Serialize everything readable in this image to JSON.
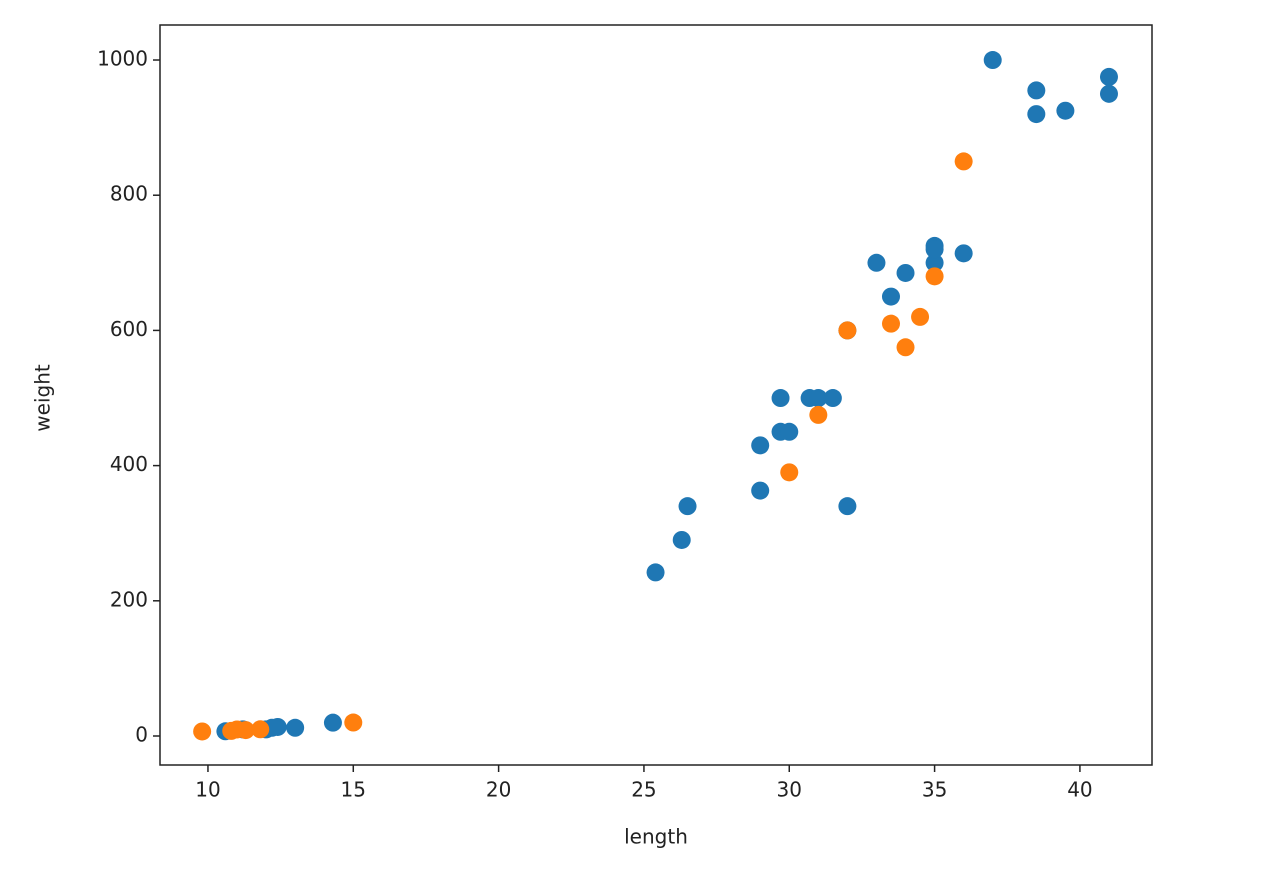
{
  "chart_data": {
    "type": "scatter",
    "x_label": "length",
    "y_label": "weight",
    "xlim": [
      8.35,
      42.48
    ],
    "xticks": [
      10,
      15,
      20,
      25,
      30,
      35,
      40
    ],
    "ylim": [
      -42.9,
      1051.8
    ],
    "yticks": [
      0,
      200,
      400,
      600,
      800,
      1000
    ],
    "grid": false,
    "series": [
      {
        "color": "#1f77b4",
        "x": [
          25.4,
          26.3,
          26.5,
          29,
          29,
          29.7,
          29.7,
          30,
          30.7,
          31,
          31.5,
          32,
          32,
          33,
          33.5,
          34,
          35,
          35,
          35,
          36,
          37,
          38.5,
          38.5,
          39.5,
          41,
          41,
          10.6,
          11.2,
          12,
          12.2,
          12.4,
          13,
          14.3
        ],
        "values": [
          242,
          290,
          340,
          363,
          430,
          450,
          500,
          450,
          500,
          500,
          500,
          340,
          600,
          700,
          650,
          685,
          700,
          725,
          720,
          714,
          1000,
          955,
          920,
          925,
          975,
          950,
          7,
          9.8,
          9.8,
          12.2,
          13.4,
          12.2,
          19.7
        ]
      },
      {
        "color": "#ff7f0e",
        "x": [
          9.8,
          10.8,
          11,
          11.3,
          11.8,
          15,
          30,
          31,
          32,
          33.5,
          34,
          34.5,
          35,
          36
        ],
        "values": [
          6.7,
          7.5,
          9.7,
          8.7,
          9.9,
          19.9,
          390,
          475,
          600,
          610,
          575,
          620,
          680,
          850
        ]
      }
    ]
  }
}
